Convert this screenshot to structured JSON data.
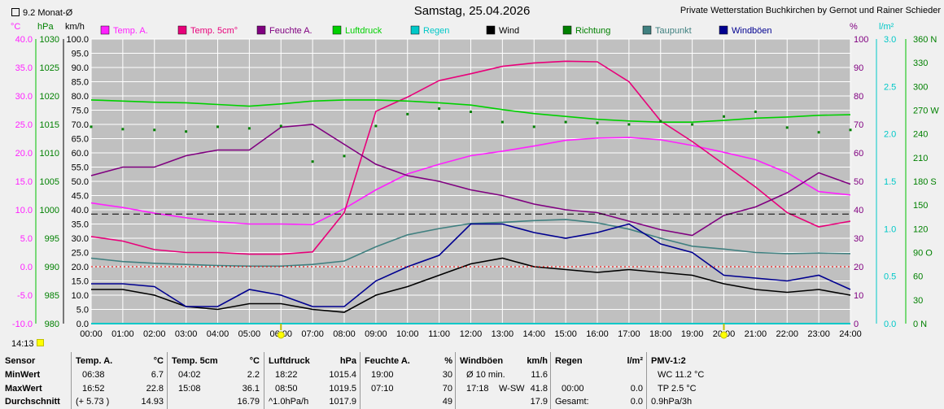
{
  "header": {
    "title": "Samstag, 25.04.2026",
    "station": "Private Wetterstation Buchkirchen by Gernot und Rainer Schieder",
    "monat_label": "9.2 Monat-Ø"
  },
  "units": {
    "c": "°C",
    "hpa": "hPa",
    "kmh": "km/h",
    "pct": "%",
    "lm2": "l/m²",
    "dir": "360 N"
  },
  "colors": {
    "temp": "#ff20ff",
    "temp5": "#e8007a",
    "feuchte": "#800080",
    "luftdruck": "#00d000",
    "regen": "#00c8c8",
    "wind": "#000000",
    "richtung": "#008000",
    "taupunkt": "#408080",
    "windboeen": "#000090",
    "bg": "#c0c0c0",
    "grid": "#ffffff"
  },
  "legend": [
    {
      "label": "Temp. A.",
      "color": "#ff20ff"
    },
    {
      "label": "Temp. 5cm°",
      "color": "#e8007a"
    },
    {
      "label": "Feuchte A.",
      "color": "#800080"
    },
    {
      "label": "Luftdruck",
      "color": "#00d000"
    },
    {
      "label": "Regen",
      "color": "#00c8c8"
    },
    {
      "label": "Wind",
      "color": "#000000"
    },
    {
      "label": "Richtung",
      "color": "#008000"
    },
    {
      "label": "Taupunkt",
      "color": "#408080"
    },
    {
      "label": "Windböen",
      "color": "#000090"
    }
  ],
  "axes": {
    "temp_ticks": [
      "40.0",
      "35.0",
      "30.0",
      "25.0",
      "20.0",
      "15.0",
      "10.0",
      "5.0",
      "0.0",
      "-5.0",
      "-10.0"
    ],
    "hpa_ticks": [
      "1030",
      "1025",
      "1020",
      "1015",
      "1010",
      "1005",
      "1000",
      "995",
      "990",
      "985",
      "980"
    ],
    "kmh_ticks": [
      "100.0",
      "95.0",
      "90.0",
      "85.0",
      "80.0",
      "75.0",
      "70.0",
      "65.0",
      "60.0",
      "55.0",
      "50.0",
      "45.0",
      "40.0",
      "35.0",
      "30.0",
      "25.0",
      "20.0",
      "15.0",
      "10.0",
      "5.0",
      "0.0"
    ],
    "pct_ticks": [
      "100",
      "90",
      "80",
      "70",
      "60",
      "50",
      "40",
      "30",
      "20",
      "10",
      "0"
    ],
    "rain_ticks": [
      "3.0",
      "2.5",
      "2.0",
      "1.5",
      "1.0",
      "0.5",
      "0.0"
    ],
    "dir_ticks": [
      "360 N",
      "330",
      "300",
      "270 W",
      "240",
      "210",
      "180 S",
      "150",
      "120",
      "90 O",
      "60",
      "30",
      "0 N"
    ],
    "x_ticks": [
      "00:00",
      "01:00",
      "02:00",
      "03:00",
      "04:00",
      "05:00",
      "06:00",
      "07:00",
      "08:00",
      "09:00",
      "10:00",
      "11:00",
      "12:00",
      "13:00",
      "14:00",
      "15:00",
      "16:00",
      "17:00",
      "18:00",
      "19:00",
      "20:00",
      "21:00",
      "22:00",
      "23:00",
      "24:00"
    ],
    "sun_markers": [
      "06:00",
      "20:00"
    ],
    "footer_time": "14:13"
  },
  "chart_data": {
    "type": "line",
    "title": "Samstag, 25.04.2026",
    "x": [
      "00:00",
      "01:00",
      "02:00",
      "03:00",
      "04:00",
      "05:00",
      "06:00",
      "07:00",
      "08:00",
      "09:00",
      "10:00",
      "11:00",
      "12:00",
      "13:00",
      "14:00",
      "15:00",
      "16:00",
      "17:00",
      "18:00",
      "19:00",
      "20:00",
      "21:00",
      "22:00",
      "23:00",
      "24:00"
    ],
    "xlabel": "",
    "ylim_temp": [
      -10,
      40
    ],
    "ylim_hpa": [
      980,
      1030
    ],
    "ylim_kmh": [
      0,
      100
    ],
    "ylim_pct": [
      0,
      100
    ],
    "ylim_rain": [
      0,
      3
    ],
    "ylim_dir": [
      0,
      360
    ],
    "series": [
      {
        "name": "Temp. A.",
        "axis": "temp",
        "values": [
          11.2,
          10.4,
          9.4,
          8.6,
          7.9,
          7.5,
          7.5,
          7.4,
          10.2,
          13.5,
          16.3,
          18.0,
          19.5,
          20.3,
          21.2,
          22.2,
          22.6,
          22.7,
          22.3,
          21.3,
          20.1,
          18.8,
          16.5,
          13.2,
          12.6
        ]
      },
      {
        "name": "Temp. 5cm°",
        "axis": "temp",
        "values": [
          5.3,
          4.5,
          3.0,
          2.5,
          2.5,
          2.2,
          2.2,
          2.6,
          9.5,
          27.3,
          29.8,
          32.7,
          33.9,
          35.2,
          35.8,
          36.1,
          36.0,
          32.5,
          25.6,
          22.0,
          18.0,
          14.0,
          9.5,
          7.0,
          8.0
        ]
      },
      {
        "name": "Feuchte A.",
        "axis": "pct",
        "values": [
          52,
          55,
          55,
          59,
          61,
          61,
          69,
          70,
          63,
          56,
          52,
          50,
          47,
          45,
          42,
          40,
          39,
          36,
          33,
          31,
          38,
          41,
          46,
          53,
          49
        ]
      },
      {
        "name": "Luftdruck",
        "axis": "hpa",
        "values": [
          1019.3,
          1019.1,
          1018.9,
          1018.8,
          1018.5,
          1018.2,
          1018.6,
          1019.1,
          1019.3,
          1019.3,
          1019.1,
          1018.8,
          1018.4,
          1017.6,
          1016.9,
          1016.4,
          1015.9,
          1015.6,
          1015.4,
          1015.4,
          1015.7,
          1016.1,
          1016.3,
          1016.6,
          1016.7
        ]
      },
      {
        "name": "Regen",
        "axis": "rain",
        "values": [
          0,
          0,
          0,
          0,
          0,
          0,
          0,
          0,
          0,
          0,
          0,
          0,
          0,
          0,
          0,
          0,
          0,
          0,
          0,
          0,
          0,
          0,
          0,
          0,
          0
        ]
      },
      {
        "name": "Wind",
        "axis": "kmh",
        "values": [
          12,
          12,
          10,
          6,
          5,
          7,
          7,
          5,
          4,
          10,
          13,
          17,
          21,
          23,
          20,
          19,
          18,
          19,
          18,
          17,
          14,
          12,
          11,
          12,
          10
        ]
      },
      {
        "name": "Richtung",
        "axis": "dir",
        "values": [
          249,
          246,
          245,
          243,
          249,
          247,
          250,
          205,
          212,
          250,
          265,
          272,
          268,
          255,
          249,
          255,
          254,
          252,
          256,
          252,
          262,
          268,
          248,
          242,
          245
        ]
      },
      {
        "name": "Taupunkt",
        "axis": "temp",
        "values": [
          1.5,
          0.9,
          0.6,
          0.4,
          0.2,
          0.1,
          0.1,
          0.4,
          1.0,
          3.5,
          5.6,
          6.7,
          7.6,
          7.8,
          8.1,
          8.3,
          7.7,
          6.6,
          5.0,
          3.6,
          3.1,
          2.5,
          2.3,
          2.4,
          2.3
        ]
      },
      {
        "name": "Windböen",
        "axis": "kmh",
        "values": [
          14,
          14,
          13,
          6,
          6,
          12,
          10,
          6,
          6,
          15,
          20,
          24,
          35,
          35,
          32,
          30,
          32,
          35,
          28,
          25,
          17,
          16,
          15,
          17,
          12
        ]
      }
    ],
    "reference_lines": [
      {
        "axis": "kmh",
        "value": 38.5,
        "style": "dashed",
        "color": "#000000"
      },
      {
        "axis": "temp",
        "value": 0,
        "style": "dotted",
        "color": "#ff0000"
      }
    ]
  },
  "summary": [
    {
      "sensor": "Sensor",
      "min": "MinWert",
      "max": "MaxWert",
      "avg": "Durchschnitt"
    },
    {
      "head": "Temp. A.",
      "unit": "°C",
      "min_time": "06:38",
      "min_val": "6.7",
      "max_time": "16:52",
      "max_val": "22.8",
      "avg_extra": "(+ 5.73 )",
      "avg_val": "14.93"
    },
    {
      "head": "Temp. 5cm",
      "unit": "°C",
      "min_time": "04:02",
      "min_val": "2.2",
      "max_time": "15:08",
      "max_val": "36.1",
      "avg_extra": "",
      "avg_val": "16.79"
    },
    {
      "head": "Luftdruck",
      "unit": "hPa",
      "min_time": "18:22",
      "min_val": "1015.4",
      "max_time": "08:50",
      "max_val": "1019.5",
      "avg_extra": "^1.0hPa/h",
      "avg_val": "1017.9"
    },
    {
      "head": "Feuchte A.",
      "unit": "%",
      "min_time": "19:00",
      "min_val": "30",
      "max_time": "07:10",
      "max_val": "70",
      "avg_extra": "",
      "avg_val": "49"
    },
    {
      "head": "Windböen",
      "unit": "km/h",
      "min_time": "Ø 10 min.",
      "min_val": "11.6",
      "max_time": "17:18",
      "max_mid": "W-SW",
      "max_val": "41.8",
      "avg_extra": "",
      "avg_val": "17.9"
    },
    {
      "head": "Regen",
      "unit": "l/m²",
      "min_time": "",
      "min_val": "",
      "max_time": "00:00",
      "max_val": "0.0",
      "avg_extra": "Gesamt:",
      "avg_val": "0.0"
    },
    {
      "head": "PMV-1:2",
      "unit": "",
      "min_time": "WC 11.2 °C",
      "min_val": "",
      "max_time": "TP 2.5 °C",
      "max_val": "",
      "avg_extra": "0.9hPa/3h",
      "avg_val": ""
    }
  ]
}
